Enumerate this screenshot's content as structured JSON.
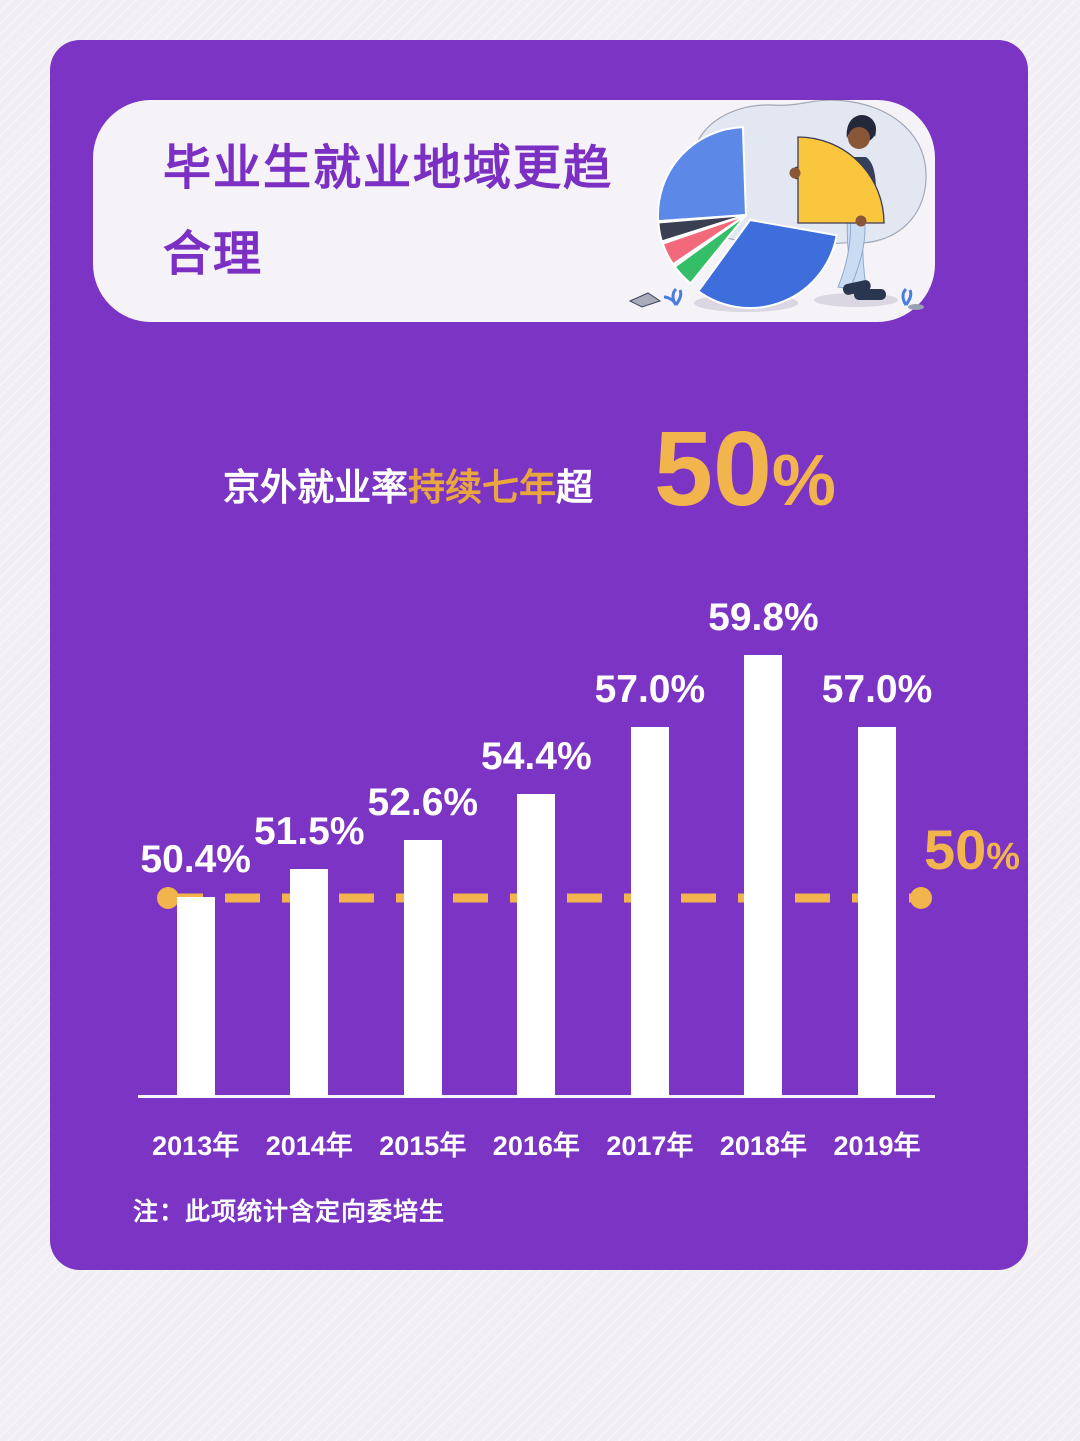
{
  "title": {
    "line1": "毕业生就业地域更趋",
    "line2": "合理"
  },
  "subtitle": {
    "white1": "京外就业率",
    "gold": "持续七年",
    "white2": "超",
    "big": "50",
    "unit": "%"
  },
  "reference_line": {
    "num": "50",
    "unit": "%",
    "value": 50
  },
  "note": "注：此项统计含定向委培生",
  "chart_data": {
    "type": "bar",
    "categories": [
      "2013年",
      "2014年",
      "2015年",
      "2016年",
      "2017年",
      "2018年",
      "2019年"
    ],
    "values": [
      50.4,
      51.5,
      52.6,
      54.4,
      57.0,
      59.8,
      57.0
    ],
    "labels": [
      "50.4%",
      "51.5%",
      "52.6%",
      "54.4%",
      "57.0%",
      "59.8%",
      "57.0%"
    ],
    "title": "京外就业率持续七年超50%",
    "xlabel": "",
    "ylabel": "",
    "reference_line": {
      "value": 50,
      "label": "50%"
    },
    "bar_color": "#ffffff",
    "grid": false,
    "legend": false
  },
  "colors": {
    "background": "#7B34C3",
    "outer_background": "#f2eff4",
    "accent_gold": "#F2B44C",
    "text_gold": "#E9A53E",
    "title_purple": "#7B2FC3",
    "bar_white": "#ffffff",
    "pie_blue_light": "#5C88E8",
    "pie_blue_dark": "#3E6EDC",
    "pie_yellow": "#F9C63E",
    "pie_pink": "#F2697C",
    "pie_green": "#35BE68",
    "pie_slate": "#3A4052"
  },
  "illustration": {
    "name": "pie-chart-with-person"
  }
}
